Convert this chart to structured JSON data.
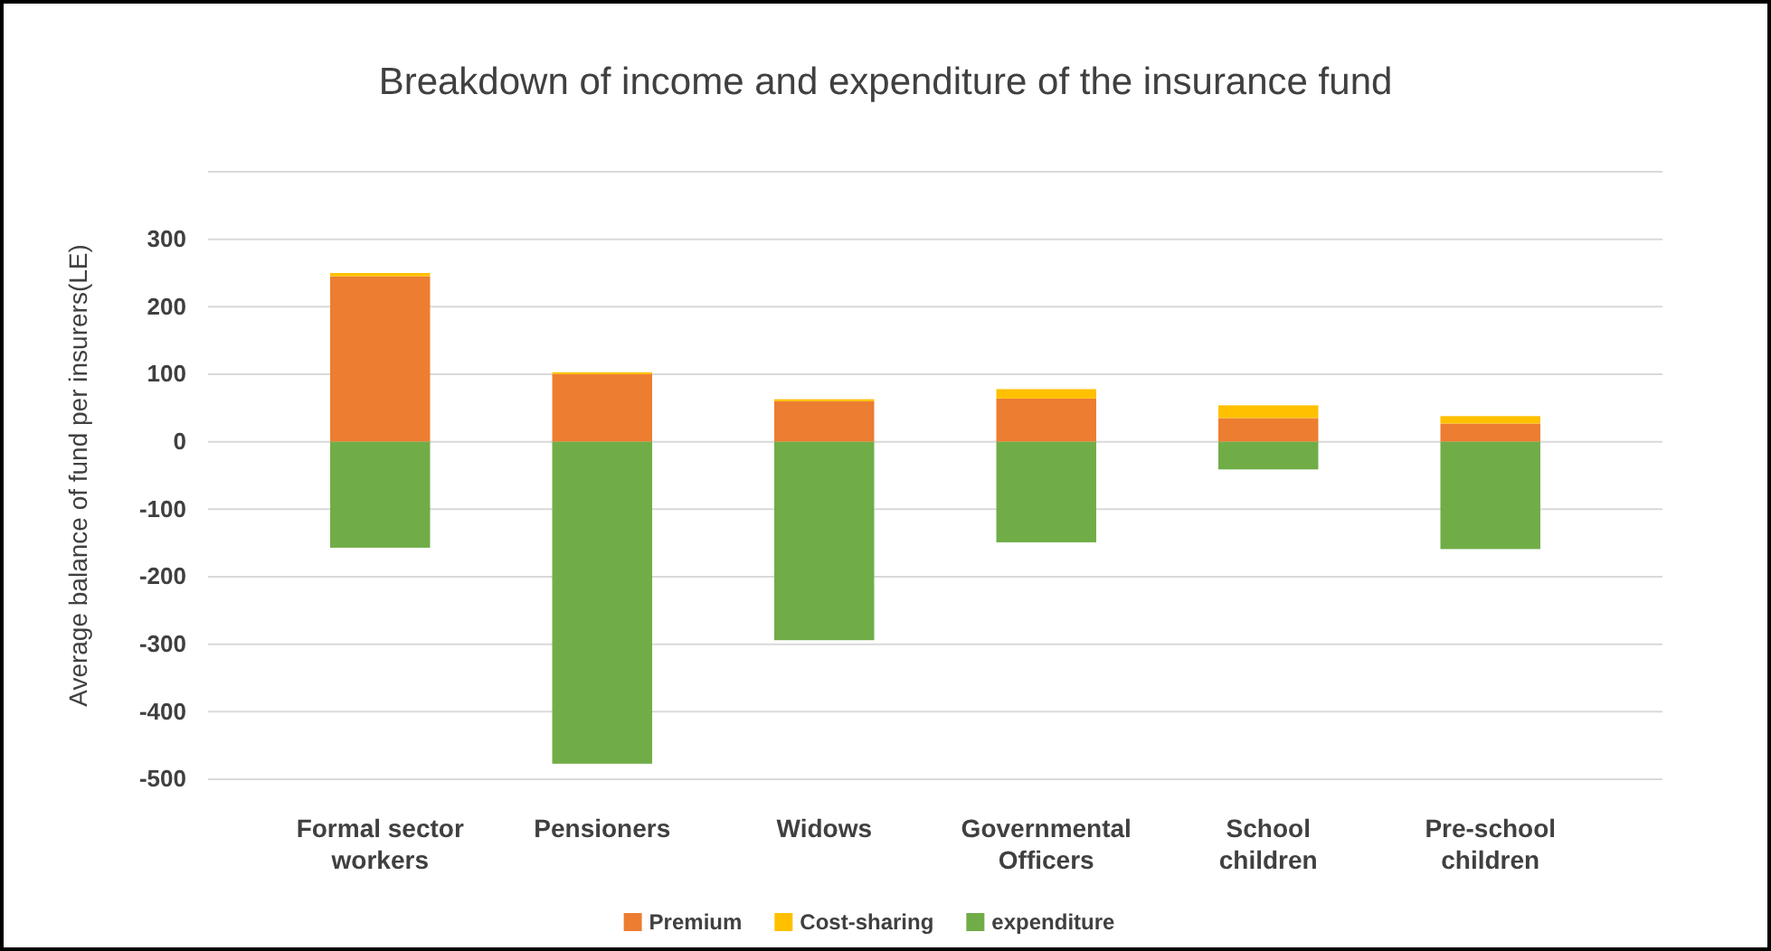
{
  "chart_data": {
    "type": "bar",
    "stacked": true,
    "title": "Breakdown of income and expenditure of the insurance fund",
    "ylabel": "Average balance of fund per insurers(LE)",
    "categories": [
      "Formal sector workers",
      "Pensioners",
      "Widows",
      "Governmental Officers",
      "School children",
      "Pre-school children"
    ],
    "series": [
      {
        "name": "Premium",
        "color": "#ed7d31",
        "values": [
          245,
          100,
          60,
          64,
          35,
          27
        ]
      },
      {
        "name": "Cost-sharing",
        "color": "#ffc000",
        "values": [
          5,
          3,
          3,
          14,
          19,
          11
        ]
      },
      {
        "name": "expenditure",
        "color": "#70ad47",
        "values": [
          -157,
          -477,
          -294,
          -149,
          -41,
          -159
        ]
      }
    ],
    "ylim": [
      -500,
      400
    ],
    "yticks": [
      -500,
      -400,
      -300,
      -200,
      -100,
      0,
      100,
      200,
      300,
      {
        "value": 400,
        "label": null
      }
    ],
    "grid": "y",
    "legend": "bottom"
  }
}
